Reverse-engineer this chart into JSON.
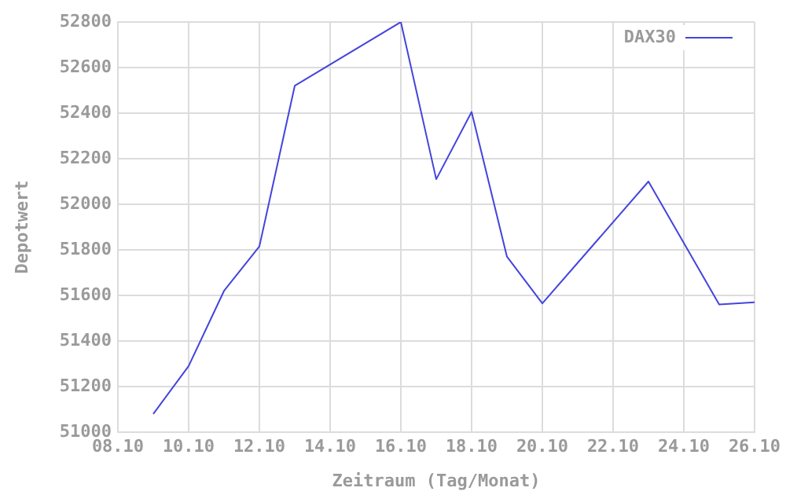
{
  "chart_data": {
    "type": "line",
    "xlabel": "Zeitraum (Tag/Monat)",
    "ylabel": "Depotwert",
    "x": [
      "--10-09",
      "--10-10",
      "--10-11",
      "--10-12",
      "--10-13",
      "--10-16",
      "--10-17",
      "--10-18",
      "--10-19",
      "--10-20",
      "--10-23",
      "--10-25",
      "--10-26"
    ],
    "series": [
      {
        "name": "DAX30",
        "color": "#4444dd",
        "values": [
          51080,
          51290,
          51620,
          51815,
          52520,
          52800,
          52110,
          52405,
          51770,
          51565,
          52100,
          51560,
          51570
        ]
      }
    ],
    "xlim": [
      "--10-08",
      "--10-26"
    ],
    "xticks": [
      {
        "value": "--10-08",
        "label": "08.10"
      },
      {
        "value": "--10-10",
        "label": "10.10"
      },
      {
        "value": "--10-12",
        "label": "12.10"
      },
      {
        "value": "--10-14",
        "label": "14.10"
      },
      {
        "value": "--10-16",
        "label": "16.10"
      },
      {
        "value": "--10-18",
        "label": "18.10"
      },
      {
        "value": "--10-20",
        "label": "20.10"
      },
      {
        "value": "--10-22",
        "label": "22.10"
      },
      {
        "value": "--10-24",
        "label": "24.10"
      },
      {
        "value": "--10-26",
        "label": "26.10"
      }
    ],
    "ylim": [
      51000,
      52800
    ],
    "yticks": [
      51000,
      51200,
      51400,
      51600,
      51800,
      52000,
      52200,
      52400,
      52600,
      52800
    ],
    "grid": true,
    "legend": "top right",
    "marker": "none",
    "line_style": "solid"
  }
}
